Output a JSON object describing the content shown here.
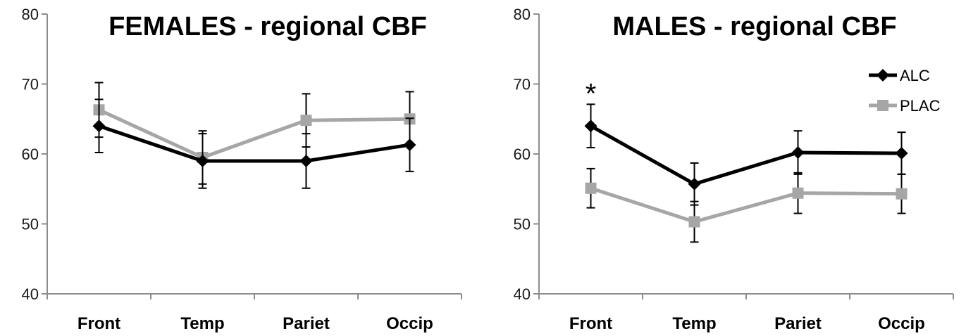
{
  "chart_data": [
    {
      "type": "line",
      "title": "FEMALES - regional CBF",
      "categories": [
        "Front",
        "Temp",
        "Pariet",
        "Occip"
      ],
      "ylim": [
        40,
        80
      ],
      "yticks": [
        40,
        50,
        60,
        70,
        80
      ],
      "grid": false,
      "series": [
        {
          "name": "ALC",
          "color": "#000000",
          "marker": "diamond",
          "values": [
            64,
            59,
            59,
            61.3
          ],
          "errors": [
            3.8,
            3.9,
            3.9,
            3.8
          ]
        },
        {
          "name": "PLAC",
          "color": "#a6a6a6",
          "marker": "square",
          "values": [
            66.3,
            59.5,
            64.8,
            65
          ],
          "errors": [
            3.9,
            3.8,
            3.8,
            3.9
          ]
        }
      ]
    },
    {
      "type": "line",
      "title": "MALES - regional CBF",
      "categories": [
        "Front",
        "Temp",
        "Pariet",
        "Occip"
      ],
      "ylim": [
        40,
        80
      ],
      "yticks": [
        40,
        50,
        60,
        70,
        80
      ],
      "grid": false,
      "legend": "top-right",
      "annotations": [
        {
          "category": "Front",
          "text": "*"
        }
      ],
      "series": [
        {
          "name": "ALC",
          "color": "#000000",
          "marker": "diamond",
          "values": [
            64,
            55.7,
            60.2,
            60.1
          ],
          "errors": [
            3.1,
            3.0,
            3.1,
            3.0
          ]
        },
        {
          "name": "PLAC",
          "color": "#a6a6a6",
          "marker": "square",
          "values": [
            55.1,
            50.3,
            54.4,
            54.3
          ],
          "errors": [
            2.8,
            2.9,
            2.9,
            2.8
          ]
        }
      ]
    }
  ]
}
